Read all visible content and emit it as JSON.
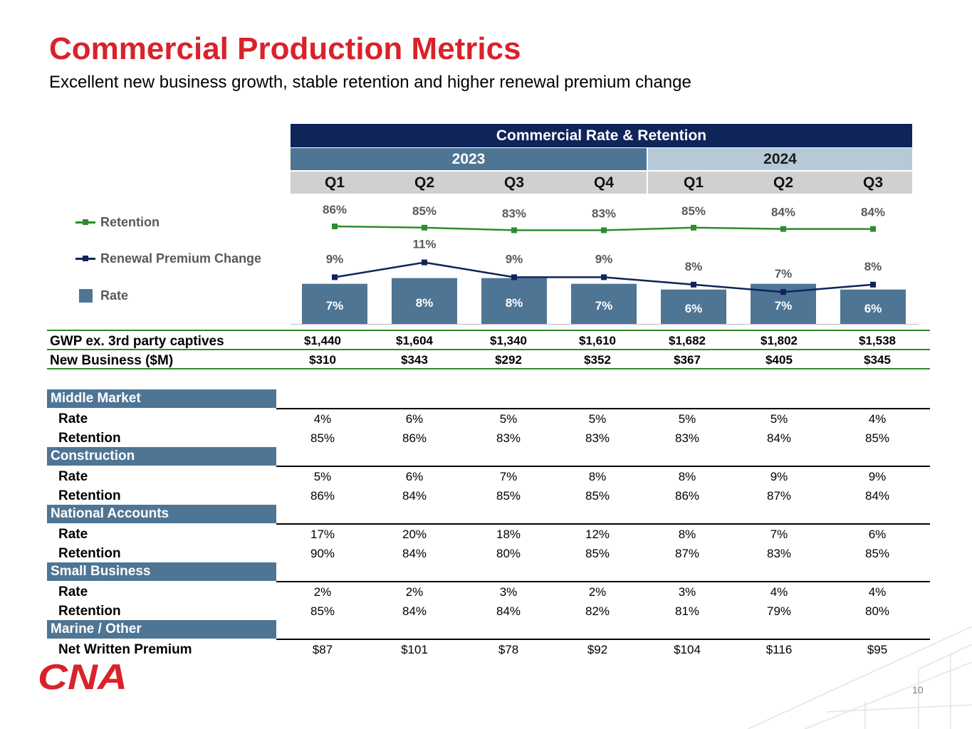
{
  "title": "Commercial Production Metrics",
  "subtitle": "Excellent new business growth, stable retention and higher renewal premium change",
  "page_number": "10",
  "logo_text": "CNA",
  "table_header": {
    "main": "Commercial Rate & Retention",
    "years": [
      "2023",
      "2024"
    ],
    "quarters": [
      "Q1",
      "Q2",
      "Q3",
      "Q4",
      "Q1",
      "Q2",
      "Q3"
    ]
  },
  "legend": {
    "retention": "Retention",
    "renewal": "Renewal Premium Change",
    "rate": "Rate"
  },
  "colors": {
    "title_red": "#d9222a",
    "navy": "#0f2459",
    "steel_blue": "#4f7595",
    "light_blue": "#b5c9d8",
    "retention_green": "#2e8b2e",
    "renewal_navy": "#0f2459"
  },
  "chart_data": {
    "type": "bar",
    "categories": [
      "Q1 2023",
      "Q2 2023",
      "Q3 2023",
      "Q4 2023",
      "Q1 2024",
      "Q2 2024",
      "Q3 2024"
    ],
    "series": [
      {
        "name": "Rate",
        "type": "bar",
        "values": [
          7,
          8,
          8,
          7,
          6,
          7,
          6
        ],
        "labels": [
          "7%",
          "8%",
          "8%",
          "7%",
          "6%",
          "7%",
          "6%"
        ]
      },
      {
        "name": "Renewal Premium Change",
        "type": "line",
        "values": [
          9,
          11,
          9,
          9,
          8,
          7,
          8
        ],
        "labels": [
          "9%",
          "11%",
          "9%",
          "9%",
          "8%",
          "7%",
          "8%"
        ]
      },
      {
        "name": "Retention",
        "type": "line",
        "values": [
          86,
          85,
          83,
          83,
          85,
          84,
          84
        ],
        "labels": [
          "86%",
          "85%",
          "83%",
          "83%",
          "85%",
          "84%",
          "84%"
        ]
      }
    ],
    "unit": "%"
  },
  "summary_rows": [
    {
      "label": "GWP ex. 3rd party captives",
      "values": [
        "$1,440",
        "$1,604",
        "$1,340",
        "$1,610",
        "$1,682",
        "$1,802",
        "$1,538"
      ]
    },
    {
      "label": "New Business ($M)",
      "values": [
        "$310",
        "$343",
        "$292",
        "$352",
        "$367",
        "$405",
        "$345"
      ]
    }
  ],
  "segments": [
    {
      "name": "Middle Market",
      "rows": [
        {
          "label": "Rate",
          "values": [
            "4%",
            "6%",
            "5%",
            "5%",
            "5%",
            "5%",
            "4%"
          ]
        },
        {
          "label": "Retention",
          "values": [
            "85%",
            "86%",
            "83%",
            "83%",
            "83%",
            "84%",
            "85%"
          ]
        }
      ]
    },
    {
      "name": "Construction",
      "rows": [
        {
          "label": "Rate",
          "values": [
            "5%",
            "6%",
            "7%",
            "8%",
            "8%",
            "9%",
            "9%"
          ]
        },
        {
          "label": "Retention",
          "values": [
            "86%",
            "84%",
            "85%",
            "85%",
            "86%",
            "87%",
            "84%"
          ]
        }
      ]
    },
    {
      "name": "National Accounts",
      "rows": [
        {
          "label": "Rate",
          "values": [
            "17%",
            "20%",
            "18%",
            "12%",
            "8%",
            "7%",
            "6%"
          ]
        },
        {
          "label": "Retention",
          "values": [
            "90%",
            "84%",
            "80%",
            "85%",
            "87%",
            "83%",
            "85%"
          ]
        }
      ]
    },
    {
      "name": "Small Business",
      "rows": [
        {
          "label": "Rate",
          "values": [
            "2%",
            "2%",
            "3%",
            "2%",
            "3%",
            "4%",
            "4%"
          ]
        },
        {
          "label": "Retention",
          "values": [
            "85%",
            "84%",
            "84%",
            "82%",
            "81%",
            "79%",
            "80%"
          ]
        }
      ]
    },
    {
      "name": "Marine / Other",
      "rows": [
        {
          "label": "Net Written Premium",
          "values": [
            "$87",
            "$101",
            "$78",
            "$92",
            "$104",
            "$116",
            "$95"
          ]
        }
      ]
    }
  ]
}
